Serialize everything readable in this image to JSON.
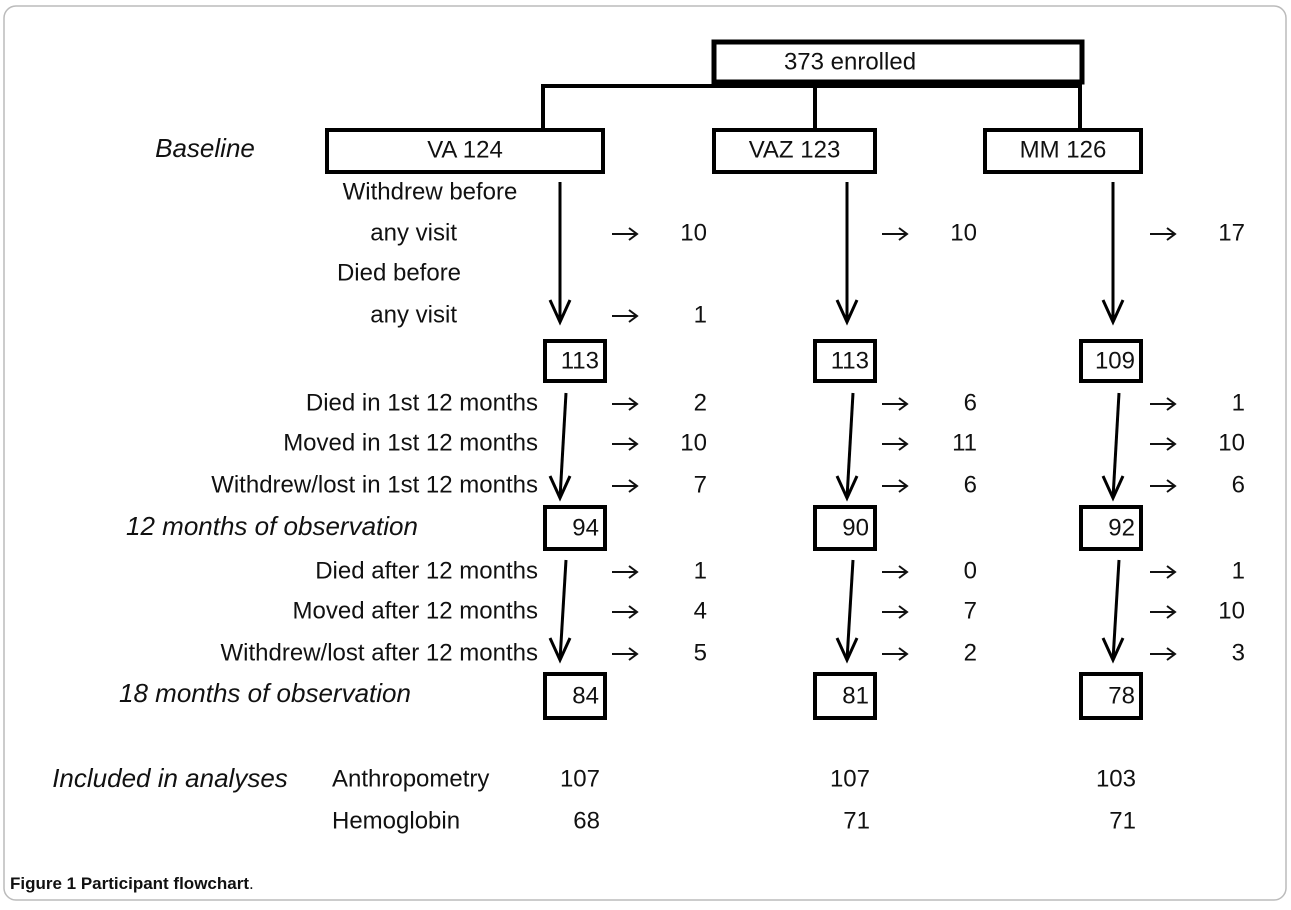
{
  "enrolled": "373 enrolled",
  "stages": {
    "baseline": "Baseline",
    "m12": "12 months of observation",
    "m18": "18 months of observation",
    "included": "Included in analyses"
  },
  "arms": [
    "VA 124",
    "VAZ 123",
    "MM 126"
  ],
  "pre_visit": {
    "withdrew_label": [
      "Withdrew before",
      "any visit"
    ],
    "withdrew": [
      10,
      10,
      17
    ],
    "died_label": [
      "Died before",
      "any visit"
    ],
    "died": [
      1
    ]
  },
  "after_baseline": [
    113,
    113,
    109
  ],
  "period1": [
    {
      "label": "Died in 1st 12 months",
      "values": [
        2,
        6,
        1
      ]
    },
    {
      "label": "Moved in 1st 12 months",
      "values": [
        10,
        11,
        10
      ]
    },
    {
      "label": "Withdrew/lost in 1st 12 months",
      "values": [
        7,
        6,
        6
      ]
    }
  ],
  "after12": [
    94,
    90,
    92
  ],
  "period2": [
    {
      "label": "Died after 12 months",
      "values": [
        1,
        0,
        1
      ]
    },
    {
      "label": "Moved after 12 months",
      "values": [
        4,
        7,
        10
      ]
    },
    {
      "label": "Withdrew/lost after 12 months",
      "values": [
        5,
        2,
        3
      ]
    }
  ],
  "after18": [
    84,
    81,
    78
  ],
  "analyses": [
    {
      "label": "Anthropometry",
      "values": [
        107,
        107,
        103
      ]
    },
    {
      "label": "Hemoglobin",
      "values": [
        68,
        71,
        71
      ]
    }
  ],
  "caption": {
    "bold": "Figure 1 Participant flowchart",
    "rest": "."
  }
}
